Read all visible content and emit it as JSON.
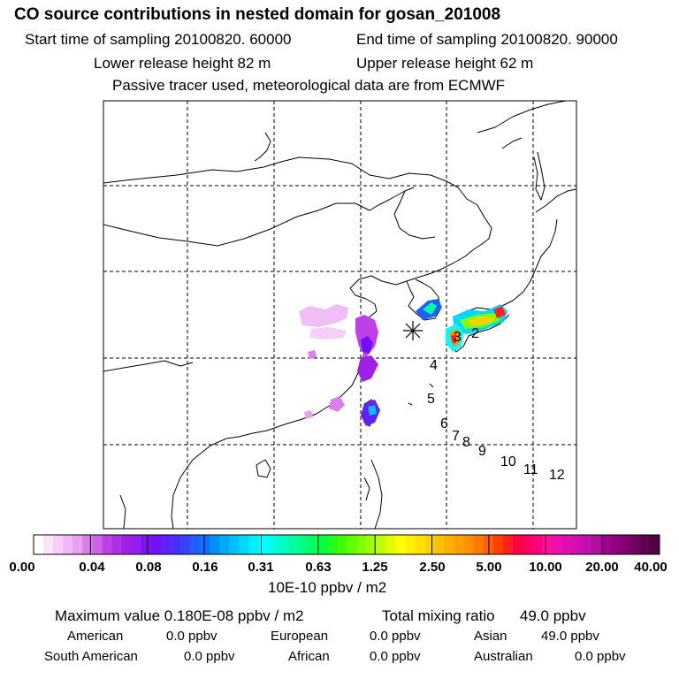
{
  "header": {
    "title": "CO  source contributions in nested domain for gosan_201008",
    "start_time": "Start time of sampling 20100820. 60000",
    "end_time": "End time of sampling 20100820. 90000",
    "lower_release": "Lower release height   82 m",
    "upper_release": "Upper release height   62 m",
    "tracer_note": "Passive tracer used, meteorological data are from ECMWF"
  },
  "trajectory_labels": [
    "2",
    "3",
    "4",
    "5",
    "6",
    "7",
    "8",
    "9",
    "10",
    "11",
    "12"
  ],
  "colorbar": {
    "tick_labels": [
      "0.00",
      "0.04",
      "0.08",
      "0.16",
      "0.31",
      "0.63",
      "1.25",
      "2.50",
      "5.00",
      "10.00",
      "20.00",
      "40.00"
    ],
    "colors": [
      "#ffffff",
      "#fbe6fd",
      "#f6cef9",
      "#f0b6f5",
      "#e8a0f0",
      "#dc7fec",
      "#cf60ea",
      "#c040e8",
      "#b030e6",
      "#a020e8",
      "#9020f2",
      "#8010f5",
      "#7010ff",
      "#6020ff",
      "#4a30ff",
      "#3545ff",
      "#2060ff",
      "#1070ff",
      "#0090ff",
      "#00a8ff",
      "#00c0ff",
      "#00d8ff",
      "#00f0ff",
      "#00ffff",
      "#00ffe0",
      "#00ffc0",
      "#00ffa0",
      "#00ff80",
      "#00ff60",
      "#00ff40",
      "#20ff20",
      "#40ff00",
      "#60ff00",
      "#80ff00",
      "#a0ff00",
      "#c0ff00",
      "#e0ff00",
      "#ffff00",
      "#fff000",
      "#ffe000",
      "#ffd000",
      "#ffc000",
      "#ffb000",
      "#ffa000",
      "#ff9000",
      "#ff7800",
      "#ff6000",
      "#ff4000",
      "#ff2020",
      "#ff0040",
      "#ff0060",
      "#ff0080",
      "#ff10a0",
      "#f010b0",
      "#e010b0",
      "#d010b0",
      "#c010b0",
      "#b010a0",
      "#a00090",
      "#900080",
      "#800070",
      "#700060",
      "#600050",
      "#500040"
    ],
    "unit": "10E-10 ppbv / m2"
  },
  "summary": {
    "max_value": "Maximum value  0.180E-08 ppbv / m2",
    "total_mixing": "Total mixing ratio      49.0 ppbv"
  },
  "regions": [
    {
      "name": "American",
      "value": "0.0 ppbv"
    },
    {
      "name": "European",
      "value": "0.0 ppbv"
    },
    {
      "name": "Asian",
      "value": "49.0 ppbv"
    },
    {
      "name": "South American",
      "value": "0.0 ppbv"
    },
    {
      "name": "African",
      "value": "0.0 ppbv"
    },
    {
      "name": "Australian",
      "value": "0.0 ppbv"
    }
  ]
}
